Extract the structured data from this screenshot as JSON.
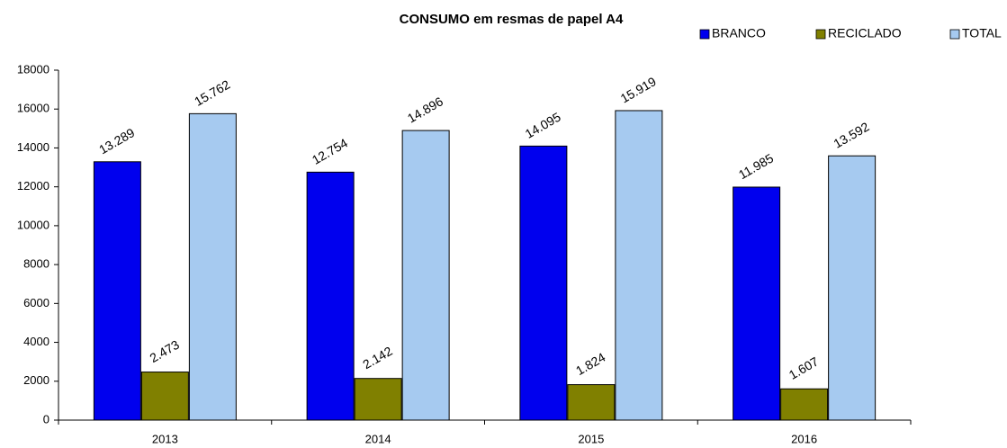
{
  "chart_data": {
    "type": "bar",
    "title": "CONSUMO em resmas de papel A4",
    "categories": [
      "2013",
      "2014",
      "2015",
      "2016"
    ],
    "series": [
      {
        "name": "BRANCO",
        "color": "#0000ee",
        "values": [
          13289,
          12754,
          14095,
          11985
        ],
        "value_labels": [
          "13.289",
          "12.754",
          "14.095",
          "11.985"
        ]
      },
      {
        "name": "RECICLADO",
        "color": "#808000",
        "values": [
          2473,
          2142,
          1824,
          1607
        ],
        "value_labels": [
          "2.473",
          "2.142",
          "1.824",
          "1.607"
        ]
      },
      {
        "name": "TOTAL",
        "color": "#a6caf0",
        "values": [
          15762,
          14896,
          15919,
          13592
        ],
        "value_labels": [
          "15.762",
          "14.896",
          "15.919",
          "13.592"
        ]
      }
    ],
    "ylim": [
      0,
      18000
    ],
    "yticks": [
      0,
      2000,
      4000,
      6000,
      8000,
      10000,
      12000,
      14000,
      16000,
      18000
    ],
    "grid": false,
    "legend": "top-right"
  }
}
